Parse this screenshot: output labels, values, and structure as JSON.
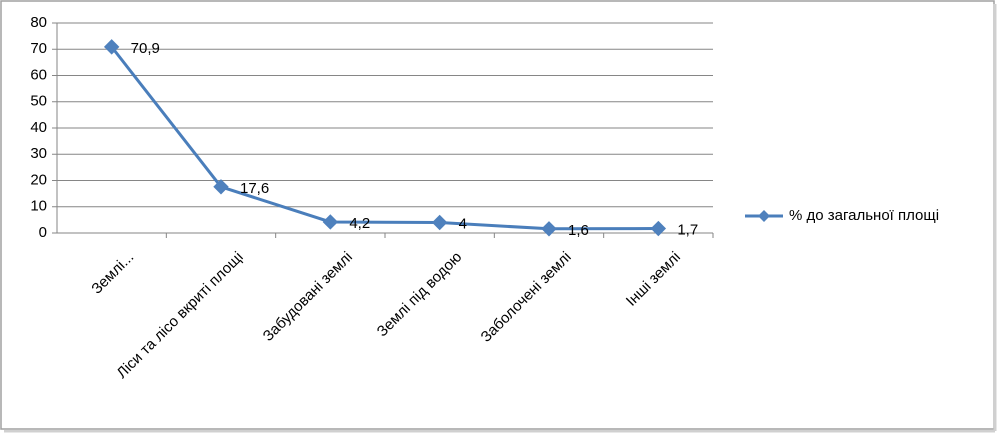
{
  "chart_data": {
    "type": "line",
    "categories": [
      "Землі...",
      "Ліси та лісо вкриті площі",
      "Забудовані землі",
      "Землі під водою",
      "Заболочені землі",
      "Інші землі"
    ],
    "series": [
      {
        "name": "% до загальної площі",
        "color": "#4a7ebb",
        "values": [
          70.9,
          17.6,
          4.2,
          4,
          1.6,
          1.7
        ],
        "value_labels": [
          "70,9",
          "17,6",
          "4,2",
          "4",
          "1,6",
          "1,7"
        ]
      }
    ],
    "ylim": [
      0,
      80
    ],
    "yticks": [
      0,
      10,
      20,
      30,
      40,
      50,
      60,
      70,
      80
    ],
    "grid": true,
    "legend": "right"
  }
}
